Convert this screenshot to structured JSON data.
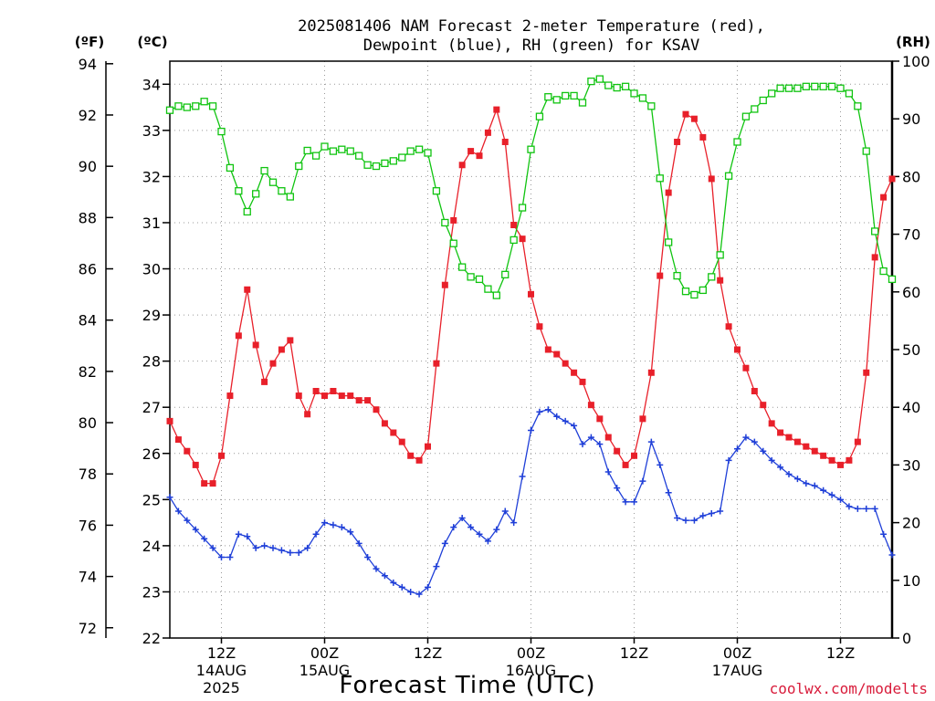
{
  "title_lines": [
    "2025081406 NAM Forecast 2-meter Temperature (red),",
    "Dewpoint (blue), RH (green) for KSAV"
  ],
  "units": {
    "fahrenheit": "(ºF)",
    "celsius": "(ºC)",
    "rh": "(RH)"
  },
  "credit": "coolwx.com/modelts",
  "colors": {
    "temperature": "#e8202a",
    "dewpoint": "#1f3fd8",
    "rh": "#10c410",
    "grid": "#999999"
  },
  "chart_data": {
    "type": "line",
    "title": "2025081406 NAM Forecast 2-meter Temperature (red), Dewpoint (blue), RH (green) for KSAV",
    "xlabel": "Forecast Time (UTC)",
    "x_unit": "hours after 2025-08-14 06Z",
    "xlim": [
      0,
      84
    ],
    "x_ticks": [
      {
        "x": 6,
        "lines": [
          "12Z",
          "14AUG",
          "2025"
        ]
      },
      {
        "x": 18,
        "lines": [
          "00Z",
          "15AUG"
        ]
      },
      {
        "x": 30,
        "lines": [
          "12Z"
        ]
      },
      {
        "x": 42,
        "lines": [
          "00Z",
          "16AUG"
        ]
      },
      {
        "x": 54,
        "lines": [
          "12Z"
        ]
      },
      {
        "x": 66,
        "lines": [
          "00Z",
          "17AUG"
        ]
      },
      {
        "x": 78,
        "lines": [
          "12Z"
        ]
      }
    ],
    "y_celsius": {
      "label": "(ºC)",
      "lim": [
        22,
        34.5
      ],
      "ticks": [
        22,
        23,
        24,
        25,
        26,
        27,
        28,
        29,
        30,
        31,
        32,
        33,
        34
      ]
    },
    "y_fahrenheit": {
      "label": "(ºF)",
      "ticks": [
        72,
        74,
        76,
        78,
        80,
        82,
        84,
        86,
        88,
        90,
        92,
        94
      ]
    },
    "y_rh": {
      "label": "(RH)",
      "lim": [
        0,
        100
      ],
      "ticks": [
        0,
        10,
        20,
        30,
        40,
        50,
        60,
        70,
        80,
        90,
        100
      ]
    },
    "grid": true,
    "series": [
      {
        "name": "2-meter Temperature",
        "axis": "celsius",
        "marker": "filled-square",
        "x": [
          0,
          1,
          2,
          3,
          4,
          5,
          6,
          7,
          8,
          9,
          10,
          11,
          12,
          13,
          14,
          15,
          16,
          17,
          18,
          19,
          20,
          21,
          22,
          23,
          24,
          25,
          26,
          27,
          28,
          29,
          30,
          31,
          32,
          33,
          34,
          35,
          36,
          37,
          38,
          39,
          40,
          41,
          42,
          43,
          44,
          45,
          46,
          47,
          48,
          49,
          50,
          51,
          52,
          53,
          54,
          55,
          56,
          57,
          58,
          59,
          60,
          61,
          62,
          63,
          64,
          65,
          66,
          67,
          68,
          69,
          70,
          71,
          72,
          73,
          74,
          75,
          76,
          77,
          78,
          79,
          80,
          81,
          82,
          83,
          84
        ],
        "values": [
          26.7,
          26.3,
          26.05,
          25.75,
          25.35,
          25.35,
          25.95,
          27.25,
          28.55,
          29.55,
          28.35,
          27.55,
          27.95,
          28.25,
          28.45,
          27.25,
          26.85,
          27.35,
          27.25,
          27.35,
          27.25,
          27.25,
          27.15,
          27.15,
          26.95,
          26.65,
          26.45,
          26.25,
          25.95,
          25.85,
          26.15,
          27.95,
          29.65,
          31.05,
          32.25,
          32.55,
          32.45,
          32.95,
          33.45,
          32.75,
          30.95,
          30.65,
          29.45,
          28.75,
          28.25,
          28.15,
          27.95,
          27.75,
          27.55,
          27.05,
          26.75,
          26.35,
          26.05,
          25.75,
          25.95,
          26.75,
          27.75,
          29.85,
          31.65,
          32.75,
          33.35,
          33.25,
          32.85,
          31.95,
          29.75,
          28.75,
          28.25,
          27.85,
          27.35,
          27.05,
          26.65,
          26.45,
          26.35,
          26.25,
          26.15,
          26.05,
          25.95,
          25.85,
          25.75,
          25.85,
          26.25,
          27.75,
          30.25,
          31.55,
          31.95
        ]
      },
      {
        "name": "Dewpoint",
        "axis": "celsius",
        "marker": "plus",
        "x": [
          0,
          1,
          2,
          3,
          4,
          5,
          6,
          7,
          8,
          9,
          10,
          11,
          12,
          13,
          14,
          15,
          16,
          17,
          18,
          19,
          20,
          21,
          22,
          23,
          24,
          25,
          26,
          27,
          28,
          29,
          30,
          31,
          32,
          33,
          34,
          35,
          36,
          37,
          38,
          39,
          40,
          41,
          42,
          43,
          44,
          45,
          46,
          47,
          48,
          49,
          50,
          51,
          52,
          53,
          54,
          55,
          56,
          57,
          58,
          59,
          60,
          61,
          62,
          63,
          64,
          65,
          66,
          67,
          68,
          69,
          70,
          71,
          72,
          73,
          74,
          75,
          76,
          77,
          78,
          79,
          80,
          81,
          82,
          83,
          84
        ],
        "values": [
          25.05,
          24.75,
          24.55,
          24.35,
          24.15,
          23.95,
          23.75,
          23.75,
          24.25,
          24.2,
          23.95,
          24.0,
          23.95,
          23.9,
          23.85,
          23.85,
          23.95,
          24.25,
          24.5,
          24.45,
          24.4,
          24.3,
          24.05,
          23.75,
          23.5,
          23.35,
          23.2,
          23.1,
          23.0,
          22.95,
          23.1,
          23.55,
          24.05,
          24.4,
          24.6,
          24.4,
          24.25,
          24.1,
          24.35,
          24.75,
          24.5,
          25.5,
          26.5,
          26.9,
          26.95,
          26.8,
          26.7,
          26.6,
          26.2,
          26.35,
          26.2,
          25.6,
          25.25,
          24.95,
          24.95,
          25.4,
          26.25,
          25.75,
          25.15,
          24.6,
          24.55,
          24.55,
          24.65,
          24.7,
          24.75,
          25.85,
          26.1,
          26.35,
          26.25,
          26.05,
          25.85,
          25.7,
          25.55,
          25.45,
          25.35,
          25.3,
          25.2,
          25.1,
          25.0,
          24.85,
          24.8,
          24.8,
          24.8,
          24.25,
          23.8
        ]
      },
      {
        "name": "RH",
        "axis": "rh",
        "marker": "open-square",
        "x": [
          0,
          1,
          2,
          3,
          4,
          5,
          6,
          7,
          8,
          9,
          10,
          11,
          12,
          13,
          14,
          15,
          16,
          17,
          18,
          19,
          20,
          21,
          22,
          23,
          24,
          25,
          26,
          27,
          28,
          29,
          30,
          31,
          32,
          33,
          34,
          35,
          36,
          37,
          38,
          39,
          40,
          41,
          42,
          43,
          44,
          45,
          46,
          47,
          48,
          49,
          50,
          51,
          52,
          53,
          54,
          55,
          56,
          57,
          58,
          59,
          60,
          61,
          62,
          63,
          64,
          65,
          66,
          67,
          68,
          69,
          70,
          71,
          72,
          73,
          74,
          75,
          76,
          77,
          78,
          79,
          80,
          81,
          82,
          83,
          84
        ],
        "values": [
          91.5,
          92.2,
          92.0,
          92.2,
          93.0,
          92.2,
          87.8,
          81.5,
          77.5,
          73.9,
          77.0,
          81.0,
          79.0,
          77.5,
          76.5,
          81.8,
          84.5,
          83.6,
          85.2,
          84.4,
          84.7,
          84.4,
          83.6,
          82.0,
          81.8,
          82.3,
          82.7,
          83.3,
          84.4,
          84.7,
          84.1,
          77.5,
          72.0,
          68.4,
          64.3,
          62.6,
          62.2,
          60.5,
          59.4,
          63.0,
          69.0,
          74.6,
          84.7,
          90.4,
          93.8,
          93.3,
          94.0,
          94.0,
          92.8,
          96.5,
          96.9,
          95.8,
          95.4,
          95.6,
          94.4,
          93.6,
          92.2,
          79.7,
          68.6,
          62.8,
          60.1,
          59.5,
          60.3,
          62.6,
          66.4,
          80.1,
          86.0,
          90.4,
          91.7,
          93.2,
          94.4,
          95.3,
          95.3,
          95.3,
          95.6,
          95.6,
          95.6,
          95.6,
          95.3,
          94.4,
          92.2,
          84.4,
          70.5,
          63.6,
          62.2
        ]
      }
    ]
  }
}
